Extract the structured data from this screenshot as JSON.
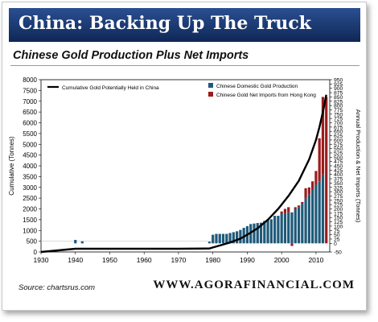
{
  "banner": {
    "title": "China: Backing Up The Truck"
  },
  "footer": {
    "source": "Source: chartsrus.com",
    "site": "WWW.AGORAFINANCIAL.COM"
  },
  "colors": {
    "banner_top": "#1f3f7f",
    "banner_bottom": "#102858",
    "domestic": "#1f5a7a",
    "imports": "#9b1c1c",
    "line": "#000000"
  },
  "chart_data": {
    "type": "bar",
    "title": "Chinese Gold Production Plus Net Imports",
    "ylabel": "Cumulative (Tonnes)",
    "y2label": "Annual Production & Net Imports (Tonnes)",
    "xlim": [
      1930,
      2014
    ],
    "ylim": [
      0,
      8000
    ],
    "y2lim": [
      -50,
      950
    ],
    "xticks": [
      1930,
      1940,
      1950,
      1960,
      1970,
      1980,
      1990,
      2000,
      2010
    ],
    "yticks": [
      0,
      500,
      1000,
      1500,
      2000,
      2500,
      3000,
      3500,
      4000,
      4500,
      5000,
      5500,
      6000,
      6500,
      7000,
      7500,
      8000
    ],
    "y2ticks": [
      -50,
      0,
      25,
      50,
      75,
      100,
      125,
      150,
      175,
      200,
      225,
      250,
      275,
      300,
      325,
      350,
      375,
      400,
      425,
      450,
      475,
      500,
      525,
      550,
      575,
      600,
      625,
      650,
      675,
      700,
      725,
      750,
      775,
      800,
      825,
      850,
      875,
      900,
      925,
      950
    ],
    "legend": [
      {
        "name": "Cumulative Gold Potentially Held in China",
        "type": "line",
        "position": "top-left"
      },
      {
        "name": "Chinese Domestic Gold Production",
        "type": "bar",
        "position": "top-right"
      },
      {
        "name": "Chinese Gold Net Imports from Hong Kong",
        "type": "bar",
        "position": "top-right"
      }
    ],
    "series": [
      {
        "name": "Chinese Domestic Gold Production",
        "axis": "right",
        "x": [
          1940,
          1942,
          1979,
          1980,
          1981,
          1982,
          1983,
          1984,
          1985,
          1986,
          1987,
          1988,
          1989,
          1990,
          1991,
          1992,
          1993,
          1994,
          1995,
          1996,
          1997,
          1998,
          1999,
          2000,
          2001,
          2002,
          2003,
          2004,
          2005,
          2006,
          2007,
          2008,
          2009,
          2010,
          2011,
          2012
        ],
        "values": [
          20,
          12,
          10,
          50,
          55,
          55,
          55,
          55,
          60,
          65,
          70,
          78,
          90,
          100,
          112,
          115,
          118,
          120,
          130,
          138,
          140,
          160,
          160,
          170,
          175,
          180,
          180,
          200,
          210,
          230,
          260,
          285,
          310,
          340,
          360,
          400
        ]
      },
      {
        "name": "Chinese Gold Net Imports from Hong Kong",
        "axis": "right",
        "x": [
          2000,
          2001,
          2002,
          2003,
          2004,
          2005,
          2006,
          2007,
          2008,
          2009,
          2010,
          2011,
          2012,
          2013
        ],
        "values": [
          15,
          25,
          30,
          -15,
          10,
          10,
          10,
          60,
          40,
          50,
          80,
          250,
          450,
          850
        ]
      },
      {
        "name": "Cumulative Gold Potentially Held in China",
        "axis": "left",
        "type": "line",
        "x": [
          1930,
          1940,
          1950,
          1960,
          1970,
          1979,
          1980,
          1982,
          1985,
          1988,
          1990,
          1993,
          1996,
          1999,
          2002,
          2005,
          2008,
          2010,
          2011,
          2012,
          2013
        ],
        "values": [
          0,
          150,
          150,
          150,
          150,
          160,
          210,
          300,
          440,
          620,
          800,
          1100,
          1500,
          2000,
          2600,
          3300,
          4300,
          5200,
          5800,
          6500,
          7300
        ]
      }
    ]
  }
}
